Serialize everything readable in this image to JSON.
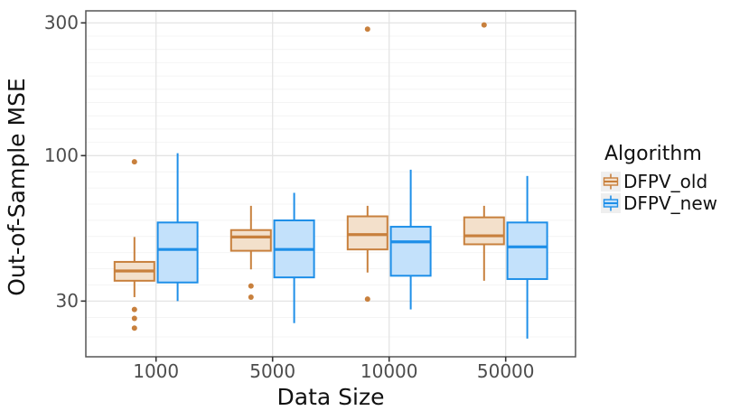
{
  "y_axis": {
    "label": "Out-of-Sample MSE",
    "tick_labels": [
      "300",
      "100",
      "30"
    ]
  },
  "x_axis": {
    "label": "Data Size",
    "tick_labels": [
      "1000",
      "5000",
      "10000",
      "50000"
    ]
  },
  "legend": {
    "title": "Algorithm",
    "items": [
      {
        "label": "DFPV_old"
      },
      {
        "label": "DFPV_new"
      }
    ]
  },
  "chart_data": {
    "type": "boxplot",
    "title": "",
    "xlabel": "Data Size",
    "ylabel": "Out-of-Sample MSE",
    "y_scale": "log10",
    "y_major_ticks": [
      300,
      100,
      30
    ],
    "ylim": [
      19,
      331
    ],
    "grid": {
      "major": true,
      "minor": true
    },
    "legend_position": "right",
    "legend_title": "Algorithm",
    "categories": [
      "1000",
      "5000",
      "10000",
      "50000"
    ],
    "colors": {
      "old_stroke": "#C8803D",
      "old_fill": "#F3E0CB",
      "new_stroke": "#1E8FE8",
      "new_fill": "#C3E1FB",
      "grid_major": "#E4E4E4",
      "grid_minor": "#F4F4F4",
      "panel_border": "#555555",
      "tick_mark": "#333333",
      "tick_text": "#4D4D4D"
    },
    "series": [
      {
        "name": "DFPV_old",
        "stroke": "#C8803D",
        "fill": "#F3E0CB",
        "boxes": [
          {
            "category": "1000",
            "whisker_low": 31,
            "q1": 35.5,
            "median": 38.5,
            "q3": 41.5,
            "whisker_high": 51,
            "outliers": [
              95,
              28,
              26,
              24
            ]
          },
          {
            "category": "5000",
            "whisker_low": 39,
            "q1": 45.5,
            "median": 51,
            "q3": 54,
            "whisker_high": 66,
            "outliers": [
              34,
              31
            ]
          },
          {
            "category": "10000",
            "whisker_low": 38,
            "q1": 46,
            "median": 52,
            "q3": 60.5,
            "whisker_high": 66,
            "outliers": [
              285,
              30.5
            ]
          },
          {
            "category": "50000",
            "whisker_low": 35.5,
            "q1": 48,
            "median": 51.5,
            "q3": 60,
            "whisker_high": 66,
            "outliers": [
              295
            ]
          }
        ]
      },
      {
        "name": "DFPV_new",
        "stroke": "#1E8FE8",
        "fill": "#C3E1FB",
        "boxes": [
          {
            "category": "1000",
            "whisker_low": 30,
            "q1": 35,
            "median": 46,
            "q3": 57.5,
            "whisker_high": 102,
            "outliers": []
          },
          {
            "category": "5000",
            "whisker_low": 25,
            "q1": 36.5,
            "median": 46,
            "q3": 58.5,
            "whisker_high": 73.5,
            "outliers": []
          },
          {
            "category": "10000",
            "whisker_low": 28,
            "q1": 37,
            "median": 49,
            "q3": 55.5,
            "whisker_high": 89,
            "outliers": []
          },
          {
            "category": "50000",
            "whisker_low": 22,
            "q1": 36,
            "median": 47,
            "q3": 57.5,
            "whisker_high": 84.5,
            "outliers": []
          }
        ]
      }
    ]
  }
}
